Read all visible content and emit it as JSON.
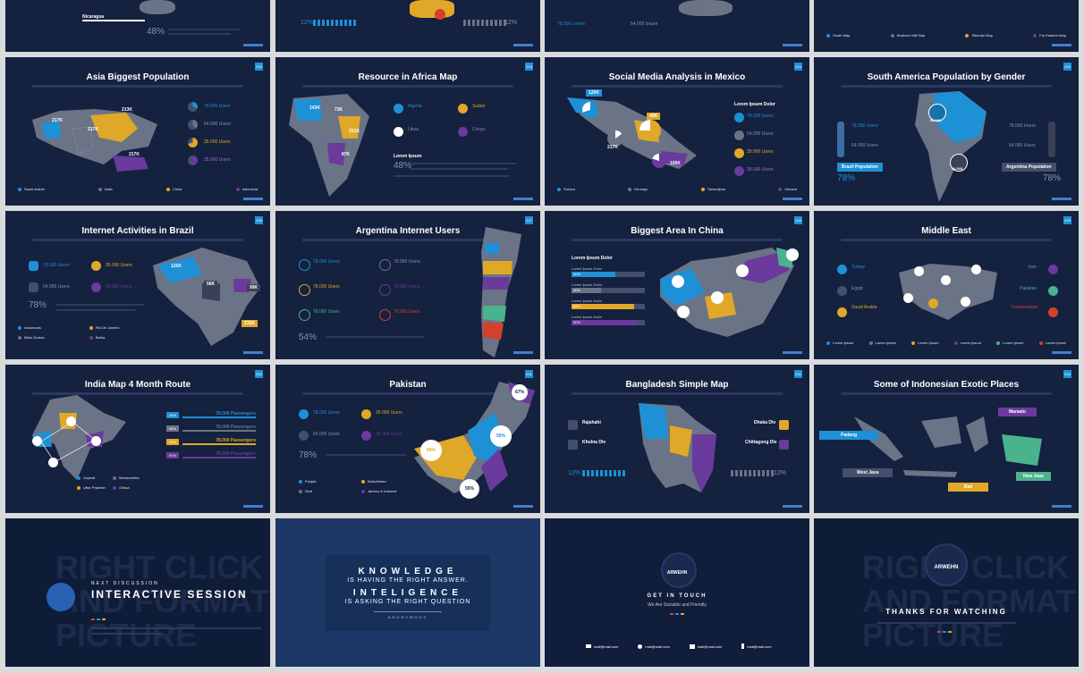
{
  "colors": {
    "bg": "#14213f",
    "blue": "#1e90d6",
    "yellow": "#e0a828",
    "purple": "#6a3a9c",
    "gray": "#6b7386",
    "green": "#4bb28e",
    "red": "#d6402b",
    "text": "#ffffff"
  },
  "row0": {
    "s0": {
      "label": "Nicaragua",
      "pct": "48%"
    },
    "s1": {
      "pct_left": "12%",
      "pct_right": "12%"
    },
    "s2": {
      "users1": "78.000 Lorem",
      "users2": "54.000 Ipsum"
    },
    "s3": {
      "legend": [
        "South Map",
        "Northern Mill Map",
        "Siberian Map",
        "Far Eastern Map"
      ]
    }
  },
  "asia": {
    "title": "Asia Biggest Population",
    "num": "222",
    "labels": [
      "217K",
      "217K",
      "213K",
      "217K"
    ],
    "users": [
      "78.000 Users",
      "54.000 Users",
      "35.000 Users",
      "35.000 Users"
    ],
    "legend": [
      "Saudi Arabia",
      "India",
      "China",
      "Indonesia"
    ]
  },
  "africa": {
    "title": "Resource in Africa Map",
    "num": "223",
    "labels": [
      "143K",
      "73K",
      "251K",
      "87K"
    ],
    "items": [
      "Algeria",
      "Sudan",
      "Libya",
      "Congo"
    ],
    "heading": "Lorem Ipsum",
    "pct": "48%"
  },
  "mexico": {
    "title": "Social Media Analysis in Mexico",
    "num": "224",
    "labels": [
      "125K",
      "217K",
      "45K",
      "105K"
    ],
    "heading": "Lorem Ipsum Dolor",
    "users": [
      "78.000 Users",
      "54.000 Users",
      "35.000 Users",
      "35.000 Users"
    ],
    "legend": [
      "Sonora",
      "Durango",
      "Tamaulipas",
      "Oaxaca"
    ]
  },
  "southamerica": {
    "title": "South America Population by Gender",
    "num": "225",
    "left_users": [
      "78.000 Users",
      "54.000 Users"
    ],
    "right_users": [
      "78.000 Users",
      "54.000 Users"
    ],
    "left_tag": "Brazil Population",
    "right_tag": "Argentina Population",
    "pct_left": "78%",
    "pct_right": "78%",
    "pin_labels": [
      "54.000",
      "54.000"
    ]
  },
  "brazil": {
    "title": "Internet Activities in Brazil",
    "num": "226",
    "users": [
      "78.000 Users",
      "35.000 Users",
      "54.000 Users",
      "35.000 Users"
    ],
    "pct": "78%",
    "labels": [
      "125K",
      "56K",
      "99K",
      "215K"
    ],
    "legend": [
      "Amazonas",
      "Rio De Janeiro",
      "Mato Grosso",
      "Bahia"
    ]
  },
  "argentina": {
    "title": "Argentina Internet Users",
    "num": "227",
    "users": [
      "78.000 Users",
      "78.000 Users",
      "78.000 Users",
      "78.000 Users",
      "78.000 Users",
      "78.000 Users"
    ],
    "pct": "54%"
  },
  "china": {
    "title": "Biggest Area In China",
    "num": "228",
    "heading": "Lorem Ipsum Dolor",
    "bars": [
      {
        "label": "Lorem Ipsum Dolor",
        "pct": "60%",
        "value": 0.6,
        "color": "#1e90d6"
      },
      {
        "label": "Lorem Ipsum Dolor",
        "pct": "40%",
        "value": 0.4,
        "color": "#6b7386"
      },
      {
        "label": "Lorem Ipsum Dolor",
        "pct": "85%",
        "value": 0.85,
        "color": "#e0a828"
      },
      {
        "label": "Lorem Ipsum Dolor",
        "pct": "90%",
        "value": 0.9,
        "color": "#6a3a9c"
      }
    ]
  },
  "middleeast": {
    "title": "Middle East",
    "num": "229",
    "left": [
      "Turkey",
      "Egypt",
      "Saudi Arabia"
    ],
    "right": [
      "Iran",
      "Pakistan",
      "Turkmenistan"
    ],
    "legend": [
      "Lorem Ipsum",
      "Lorem Ipsum",
      "Lorem Ipsum",
      "Lorem Ipsum",
      "Lorem Ipsum",
      "Lorem Ipsum"
    ]
  },
  "india": {
    "title": "India Map 4 Month Route",
    "num": "230",
    "passengers": [
      "78.000 Passengers",
      "78.000 Passengers",
      "78.000 Passengers",
      "78.000 Passengers"
    ],
    "pcts": [
      "34%",
      "46%",
      "53%",
      "91%"
    ],
    "legend": [
      "Gujarat",
      "Maharashtra",
      "Uttar Pradesh",
      "Orissa"
    ]
  },
  "pakistan": {
    "title": "Pakistan",
    "num": "231",
    "users": [
      "78.000 Users",
      "35.000 Users",
      "54.000 Users",
      "35.000 Users"
    ],
    "pct": "78%",
    "circles": [
      "67%",
      "55%",
      "55%",
      "55%"
    ],
    "legend": [
      "Punjab",
      "Balochistan",
      "Sind",
      "Jammu & Kashmir"
    ]
  },
  "bangladesh": {
    "title": "Bangladesh Simple Map",
    "num": "232",
    "left": [
      "Rajshahi",
      "Khulna Div"
    ],
    "right": [
      "Dhaka Div",
      "Chittagong Div"
    ],
    "pct_left": "12%",
    "pct_right": "12%"
  },
  "indonesia": {
    "title": "Some of Indonesian Exotic Places",
    "num": "233",
    "places": [
      "Padang",
      "Manado",
      "West Java",
      "Bali",
      "New Java"
    ]
  },
  "interactive": {
    "small": "NEXT DISCUSSION",
    "big": "INTERACTIVE SESSION",
    "bg": "RIGHT CLICK AND FORMAT PICTURE"
  },
  "quote": {
    "l1": "KNOWLEDGE",
    "l2": "IS HAVING THE RIGHT ANSWER.",
    "l3": "INTELIGENCE",
    "l4": "IS ASKING THE RIGHT QUESTION",
    "author": "ANONYMOUS"
  },
  "contact": {
    "brand": "ARWEHN",
    "head": "GET IN TOUCH",
    "sub": "We Are Sociable and Friendly",
    "items": [
      "mail@mail.com",
      "mail@mail.com",
      "mail@mail.com",
      "mail@mail.com"
    ]
  },
  "thanks": {
    "brand": "ARWEHN",
    "head": "THANKS FOR WATCHING",
    "bg": "RIGHT CLICK AND FORMAT PICTURE"
  }
}
